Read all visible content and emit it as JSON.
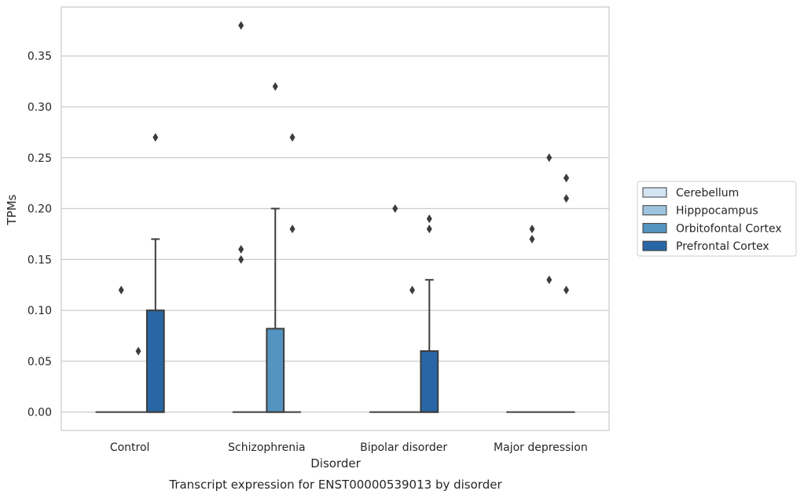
{
  "chart_data": {
    "type": "box",
    "title": "Transcript expression for ENST00000539013 by disorder",
    "xlabel": "Disorder",
    "ylabel": "TPMs",
    "ylim": [
      -0.018,
      0.398
    ],
    "yticks": [
      0.0,
      0.05,
      0.1,
      0.15,
      0.2,
      0.25,
      0.3,
      0.35
    ],
    "ytick_labels": [
      "0.00",
      "0.05",
      "0.10",
      "0.15",
      "0.20",
      "0.25",
      "0.30",
      "0.35"
    ],
    "grid": true,
    "legend_position": "right",
    "categories": [
      "Control",
      "Schizophrenia",
      "Bipolar disorder",
      "Major depression"
    ],
    "series": [
      {
        "name": "Cerebellum",
        "color": "#d3e4f3",
        "boxes": [
          {
            "q1": 0,
            "median": 0,
            "q3": 0,
            "whisker_low": 0,
            "whisker_high": 0,
            "outliers": []
          },
          {
            "q1": 0,
            "median": 0,
            "q3": 0,
            "whisker_low": 0,
            "whisker_high": 0,
            "outliers": [
              0.38,
              0.16,
              0.15
            ]
          },
          {
            "q1": 0,
            "median": 0,
            "q3": 0,
            "whisker_low": 0,
            "whisker_high": 0,
            "outliers": []
          },
          {
            "q1": 0,
            "median": 0,
            "q3": 0,
            "whisker_low": 0,
            "whisker_high": 0,
            "outliers": []
          }
        ]
      },
      {
        "name": "Hipppocampus",
        "color": "#9ec4dd",
        "boxes": [
          {
            "q1": 0,
            "median": 0,
            "q3": 0,
            "whisker_low": 0,
            "whisker_high": 0,
            "outliers": [
              0.12
            ]
          },
          {
            "q1": 0,
            "median": 0,
            "q3": 0,
            "whisker_low": 0,
            "whisker_high": 0,
            "outliers": []
          },
          {
            "q1": 0,
            "median": 0,
            "q3": 0,
            "whisker_low": 0,
            "whisker_high": 0,
            "outliers": [
              0.2
            ]
          },
          {
            "q1": 0,
            "median": 0,
            "q3": 0,
            "whisker_low": 0,
            "whisker_high": 0,
            "outliers": [
              0.18,
              0.17
            ]
          }
        ]
      },
      {
        "name": "Orbitofontal Cortex",
        "color": "#5593c0",
        "boxes": [
          {
            "q1": 0,
            "median": 0,
            "q3": 0,
            "whisker_low": 0,
            "whisker_high": 0,
            "outliers": [
              0.06
            ]
          },
          {
            "q1": 0,
            "median": 0,
            "q3": 0.082,
            "whisker_low": 0,
            "whisker_high": 0.2,
            "outliers": [
              0.32
            ]
          },
          {
            "q1": 0,
            "median": 0,
            "q3": 0,
            "whisker_low": 0,
            "whisker_high": 0,
            "outliers": [
              0.12
            ]
          },
          {
            "q1": 0,
            "median": 0,
            "q3": 0,
            "whisker_low": 0,
            "whisker_high": 0,
            "outliers": [
              0.25,
              0.13
            ]
          }
        ]
      },
      {
        "name": "Prefrontal Cortex",
        "color": "#2866a5",
        "boxes": [
          {
            "q1": 0,
            "median": 0,
            "q3": 0.1,
            "whisker_low": 0,
            "whisker_high": 0.17,
            "outliers": [
              0.27
            ]
          },
          {
            "q1": 0,
            "median": 0,
            "q3": 0,
            "whisker_low": 0,
            "whisker_high": 0,
            "outliers": [
              0.27,
              0.18
            ]
          },
          {
            "q1": 0,
            "median": 0,
            "q3": 0.06,
            "whisker_low": 0,
            "whisker_high": 0.13,
            "outliers": [
              0.19,
              0.18
            ]
          },
          {
            "q1": 0,
            "median": 0,
            "q3": 0,
            "whisker_low": 0,
            "whisker_high": 0,
            "outliers": [
              0.23,
              0.23,
              0.21,
              0.12
            ]
          }
        ]
      }
    ]
  }
}
